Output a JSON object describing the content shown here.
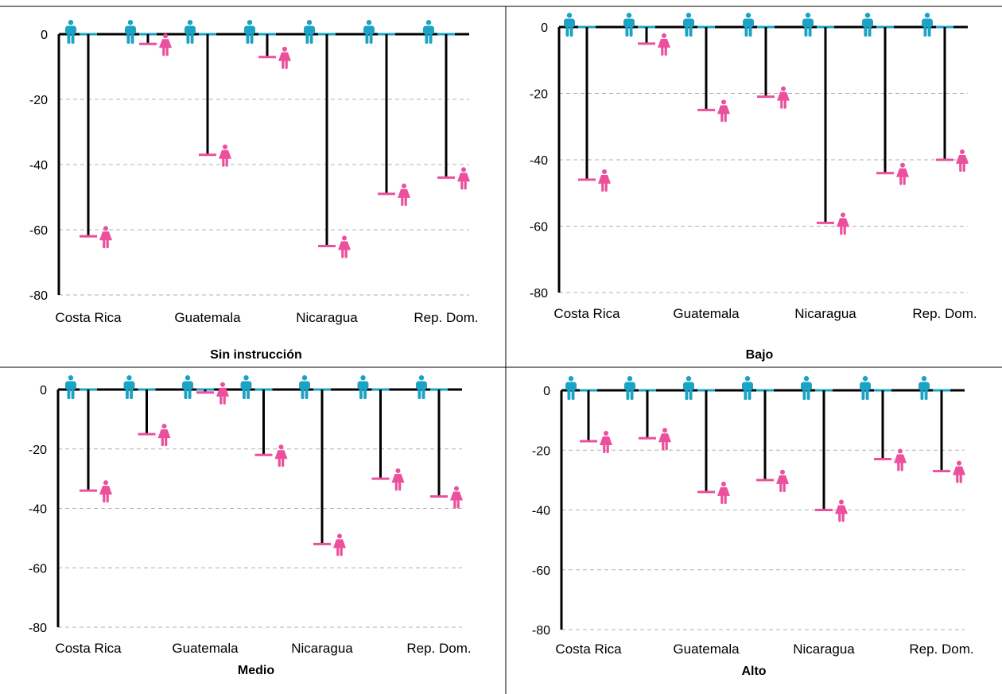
{
  "colors": {
    "male": "#1aa3c4",
    "female": "#ec4f9c",
    "stem": "#000000",
    "grid": "#b0b0b0"
  },
  "icons": {
    "male": "man-icon",
    "female": "woman-icon"
  },
  "chart_data": [
    {
      "type": "bar",
      "title": "Sin instrucción",
      "categories": [
        "Costa Rica",
        "",
        "Guatemala",
        "",
        "Nicaragua",
        "",
        "Rep. Dom."
      ],
      "ylim": [
        -80,
        0
      ],
      "yticks": [
        0,
        -20,
        -40,
        -60,
        -80
      ],
      "grid": true,
      "series": [
        {
          "values": [
            -62,
            -3,
            -37,
            -7,
            -65,
            -49,
            -44
          ]
        }
      ]
    },
    {
      "type": "bar",
      "title": "Bajo",
      "categories": [
        "Costa Rica",
        "",
        "Guatemala",
        "",
        "Nicaragua",
        "",
        "Rep. Dom."
      ],
      "ylim": [
        -80,
        0
      ],
      "yticks": [
        0,
        -20,
        -40,
        -60,
        -80
      ],
      "grid": true,
      "series": [
        {
          "values": [
            -46,
            -5,
            -25,
            -21,
            -59,
            -44,
            -40
          ]
        }
      ]
    },
    {
      "type": "bar",
      "title": "Medio",
      "categories": [
        "Costa Rica",
        "",
        "Guatemala",
        "",
        "Nicaragua",
        "",
        "Rep. Dom."
      ],
      "ylim": [
        -80,
        0
      ],
      "yticks": [
        0,
        -20,
        -40,
        -60,
        -80
      ],
      "grid": true,
      "series": [
        {
          "values": [
            -34,
            -15,
            -1,
            -22,
            -52,
            -30,
            -36
          ]
        }
      ]
    },
    {
      "type": "bar",
      "title": "Alto",
      "categories": [
        "Costa Rica",
        "",
        "Guatemala",
        "",
        "Nicaragua",
        "",
        "Rep. Dom."
      ],
      "ylim": [
        -80,
        0
      ],
      "yticks": [
        0,
        -20,
        -40,
        -60,
        -80
      ],
      "grid": true,
      "series": [
        {
          "values": [
            -17,
            -16,
            -34,
            -30,
            -40,
            -23,
            -27
          ]
        }
      ]
    }
  ]
}
